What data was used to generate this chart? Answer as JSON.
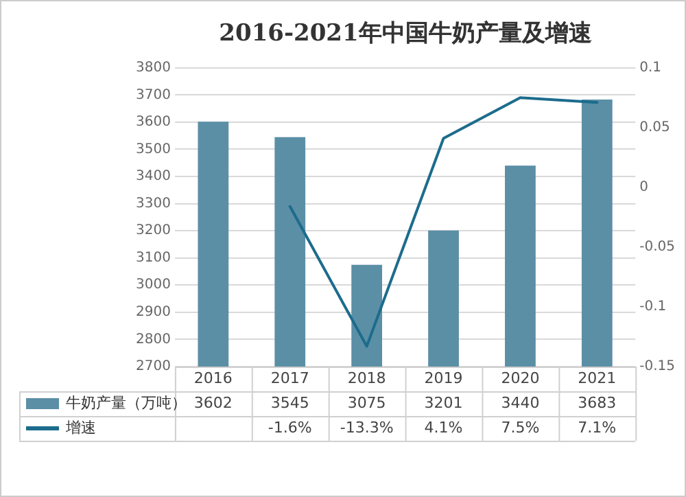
{
  "chart_data": {
    "type": "bar",
    "title": "2016-2021年中国牛奶产量及增速",
    "categories": [
      "2016",
      "2017",
      "2018",
      "2019",
      "2020",
      "2021"
    ],
    "series": [
      {
        "name": "牛奶产量（万吨）",
        "color": "#5b8fa6",
        "values": [
          3602,
          3545,
          3075,
          3201,
          3440,
          3683
        ],
        "value_labels": [
          "3602",
          "3545",
          "3075",
          "3201",
          "3440",
          "3683"
        ]
      },
      {
        "name": "增速",
        "type": "line",
        "axis": "y2",
        "color": "#1c6c8c",
        "values": [
          null,
          -0.016,
          -0.133,
          0.041,
          0.075,
          0.071
        ],
        "value_labels": [
          null,
          "-1.6%",
          "-13.3%",
          "4.1%",
          "7.5%",
          "7.1%"
        ]
      }
    ],
    "ylim": [
      2700,
      3800
    ],
    "yticks": [
      2700,
      2800,
      2900,
      3000,
      3100,
      3200,
      3300,
      3400,
      3500,
      3600,
      3700,
      3800
    ],
    "y2lim": [
      -0.15,
      0.1
    ],
    "y2ticks": [
      -0.15,
      -0.1,
      -0.05,
      0,
      0.05,
      0.1
    ],
    "grid": "y",
    "legend": "bottom",
    "marker": "none",
    "line_style": "solid"
  }
}
